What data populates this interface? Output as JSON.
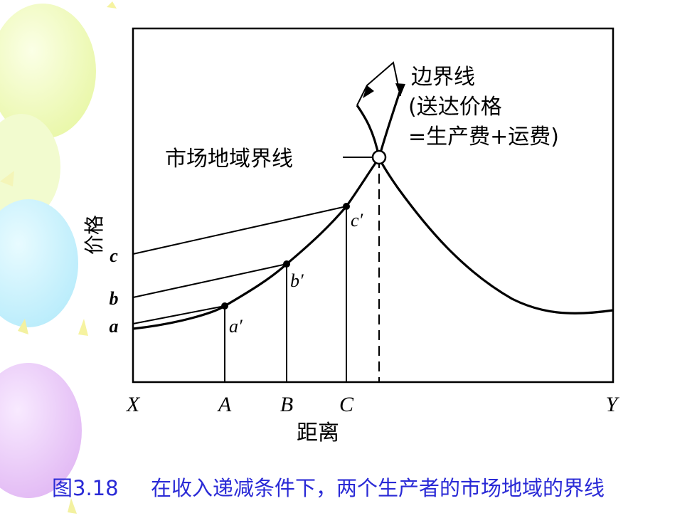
{
  "figure": {
    "y_axis_label": "价格",
    "x_axis_label": "距离",
    "price_levels": [
      "a",
      "b",
      "c"
    ],
    "x_points": [
      "X",
      "A",
      "B",
      "C",
      "Y"
    ],
    "curve_points": [
      "a′",
      "b′",
      "c′"
    ],
    "market_boundary_label": "市场地域界线",
    "boundary_callout": {
      "line1": "边界线",
      "line2": "(送达价格",
      "line3": "=生产费+运费)"
    }
  },
  "caption": {
    "number": "图3.18",
    "text": "在收入递减条件下，两个生产者的市场地域的界线"
  },
  "colors": {
    "caption": "#2a2ad6",
    "ink": "#000000"
  }
}
